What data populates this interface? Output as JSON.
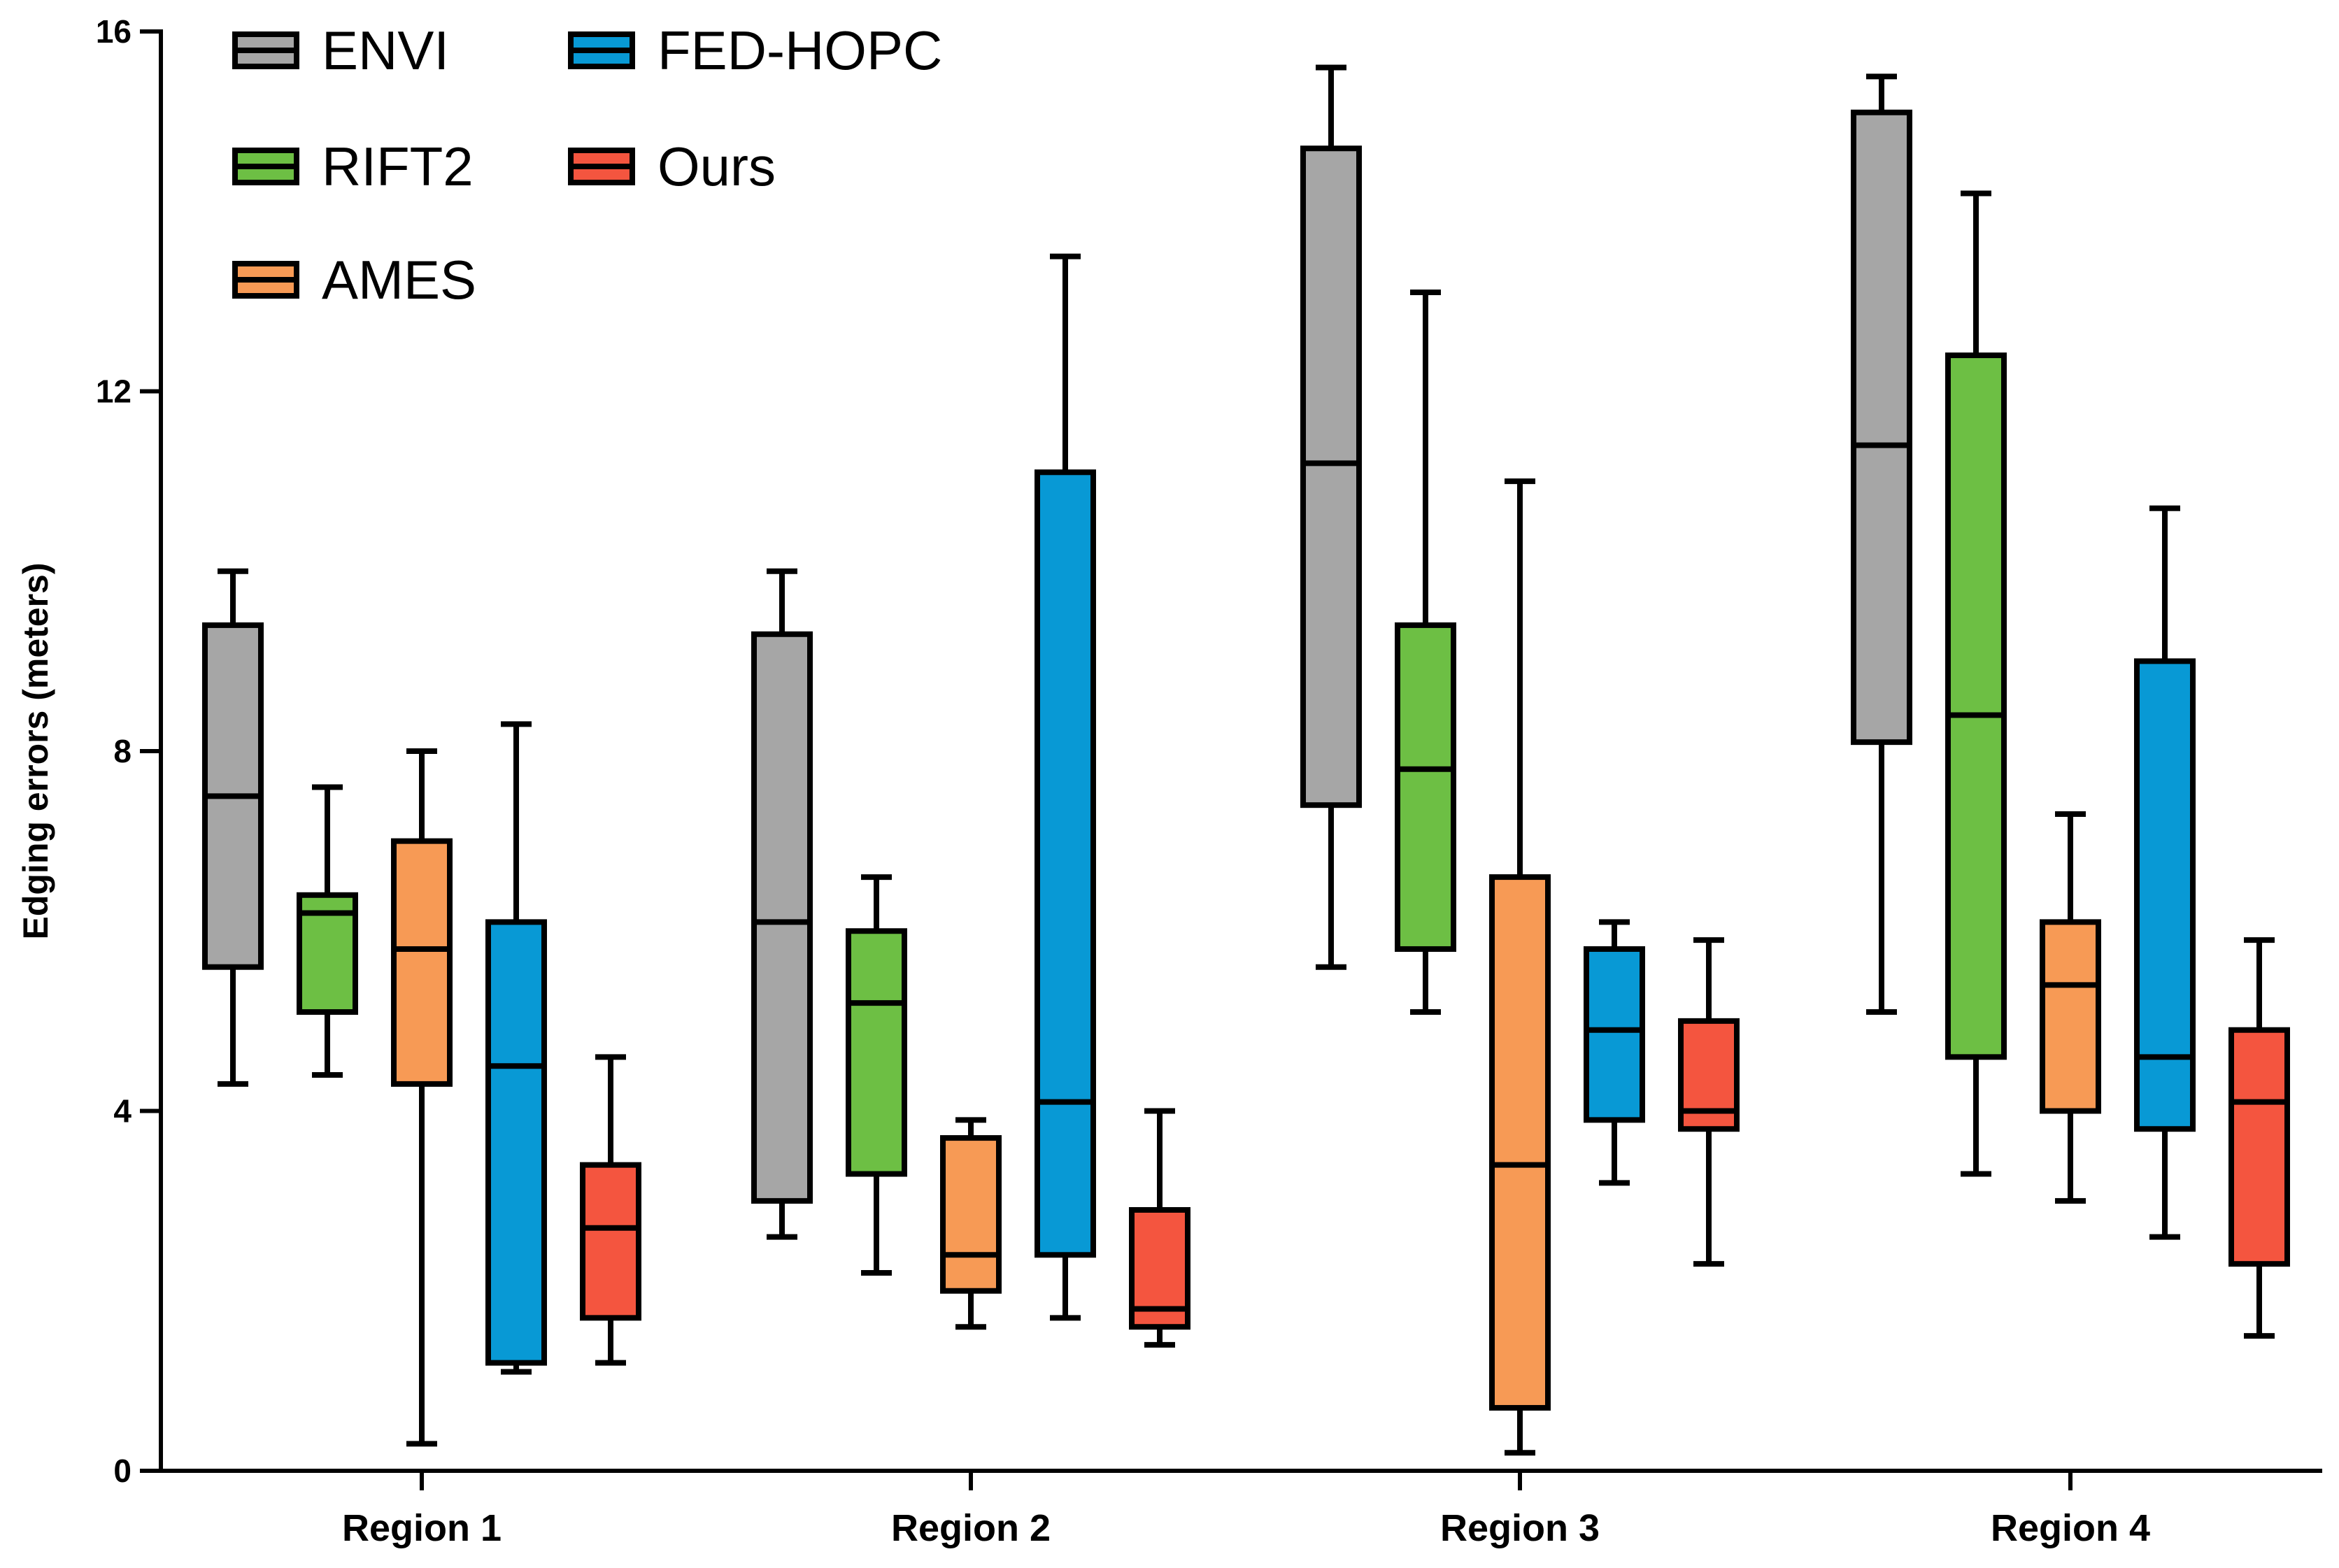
{
  "chart_data": {
    "type": "boxplot",
    "title": "",
    "xlabel": "",
    "ylabel": "Edging errors (meters)",
    "ylim": [
      0,
      16
    ],
    "yticks": [
      0,
      4,
      8,
      12,
      16
    ],
    "grid": false,
    "legend_position": "top-left",
    "categories": [
      "Region 1",
      "Region 2",
      "Region 3",
      "Region 4"
    ],
    "series": [
      {
        "name": "ENVI",
        "color": "#a6a6a6",
        "boxes": [
          {
            "min": 4.3,
            "q1": 5.6,
            "median": 7.5,
            "q3": 9.4,
            "max": 10.0
          },
          {
            "min": 2.6,
            "q1": 3.0,
            "median": 6.1,
            "q3": 9.3,
            "max": 10.0
          },
          {
            "min": 5.6,
            "q1": 7.4,
            "median": 11.2,
            "q3": 14.7,
            "max": 15.6
          },
          {
            "min": 5.1,
            "q1": 8.1,
            "median": 11.4,
            "q3": 15.1,
            "max": 15.5
          }
        ]
      },
      {
        "name": "RIFT2",
        "color": "#6dbf44",
        "boxes": [
          {
            "min": 4.4,
            "q1": 5.1,
            "median": 6.2,
            "q3": 6.4,
            "max": 7.6
          },
          {
            "min": 2.2,
            "q1": 3.3,
            "median": 5.2,
            "q3": 6.0,
            "max": 6.6
          },
          {
            "min": 5.1,
            "q1": 5.8,
            "median": 7.8,
            "q3": 9.4,
            "max": 13.1
          },
          {
            "min": 3.3,
            "q1": 4.6,
            "median": 8.4,
            "q3": 12.4,
            "max": 14.2
          }
        ]
      },
      {
        "name": "AMES",
        "color": "#f79a55",
        "boxes": [
          {
            "min": 0.3,
            "q1": 4.3,
            "median": 5.8,
            "q3": 7.0,
            "max": 8.0
          },
          {
            "min": 1.6,
            "q1": 2.0,
            "median": 2.4,
            "q3": 3.7,
            "max": 3.9
          },
          {
            "min": 0.2,
            "q1": 0.7,
            "median": 3.4,
            "q3": 6.6,
            "max": 11.0
          },
          {
            "min": 3.0,
            "q1": 4.0,
            "median": 5.4,
            "q3": 6.1,
            "max": 7.3
          }
        ]
      },
      {
        "name": "FED-HOPC",
        "color": "#0899d5",
        "boxes": [
          {
            "min": 1.1,
            "q1": 1.2,
            "median": 4.5,
            "q3": 6.1,
            "max": 8.3
          },
          {
            "min": 1.7,
            "q1": 2.4,
            "median": 4.1,
            "q3": 11.1,
            "max": 13.5
          },
          {
            "min": 3.2,
            "q1": 3.9,
            "median": 4.9,
            "q3": 5.8,
            "max": 6.1
          },
          {
            "min": 2.6,
            "q1": 3.8,
            "median": 4.6,
            "q3": 9.0,
            "max": 10.7
          }
        ]
      },
      {
        "name": "Ours",
        "color": "#f4553f",
        "boxes": [
          {
            "min": 1.2,
            "q1": 1.7,
            "median": 2.7,
            "q3": 3.4,
            "max": 4.6
          },
          {
            "min": 1.4,
            "q1": 1.6,
            "median": 1.8,
            "q3": 2.9,
            "max": 4.0
          },
          {
            "min": 2.3,
            "q1": 3.8,
            "median": 4.0,
            "q3": 5.0,
            "max": 5.9
          },
          {
            "min": 1.5,
            "q1": 2.3,
            "median": 4.1,
            "q3": 4.9,
            "max": 5.9
          }
        ]
      }
    ]
  }
}
